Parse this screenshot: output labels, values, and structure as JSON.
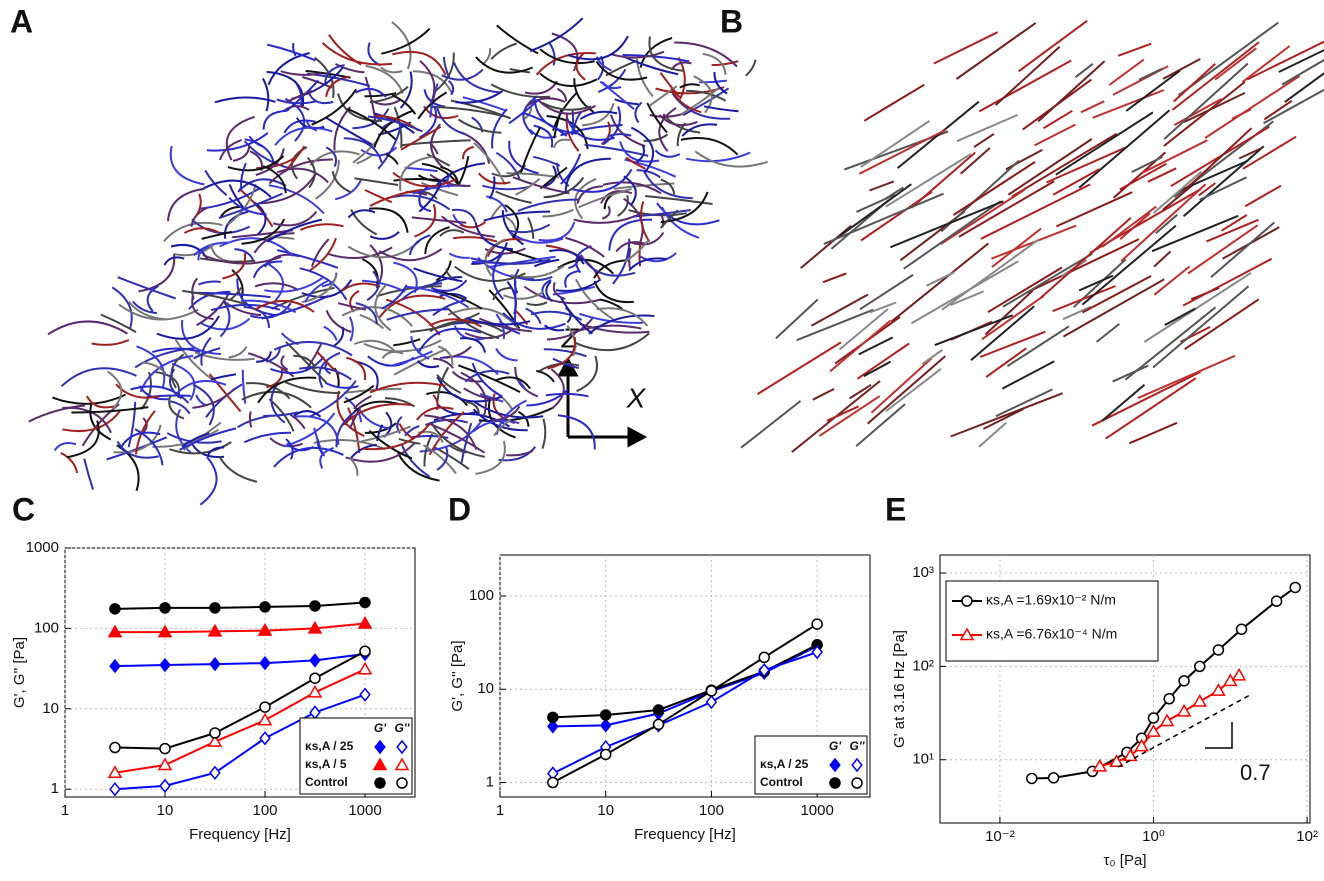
{
  "network_panels": [
    {
      "label": "A"
    },
    {
      "label": "B"
    }
  ],
  "axis_arrows": {
    "vertical": "Z",
    "horizontal": "X"
  },
  "chart_data": [
    {
      "type": "line",
      "label": "C",
      "x_label": "Frequency [Hz]",
      "y_label": "G', G'' [Pa]",
      "log_x": true,
      "log_y": true,
      "grid": true,
      "xlim": [
        1,
        3162
      ],
      "xticks": [
        1,
        10,
        100,
        1000
      ],
      "ylim": [
        0.8,
        1000
      ],
      "yticks": [
        1,
        10,
        100,
        1000
      ],
      "x": [
        3.16,
        10,
        31.6,
        100,
        316,
        1000
      ],
      "legend_columns": [
        "G'",
        "G''"
      ],
      "series": [
        {
          "name": "κs,A / 25",
          "color": "#0000ff",
          "marker": "diamond",
          "storage": [
            34,
            35,
            36,
            37,
            40,
            48
          ],
          "loss": [
            1.0,
            1.1,
            1.6,
            4.3,
            9,
            15
          ]
        },
        {
          "name": "κs,A / 5",
          "color": "#ff0000",
          "marker": "triangle",
          "storage": [
            90,
            90,
            92,
            94,
            100,
            115
          ],
          "loss": [
            1.6,
            2.0,
            3.9,
            7.2,
            16,
            31
          ]
        },
        {
          "name": "Control",
          "color": "#000000",
          "marker": "circle",
          "storage": [
            175,
            180,
            180,
            185,
            190,
            210
          ],
          "loss": [
            3.3,
            3.2,
            5,
            10.5,
            24,
            52
          ]
        }
      ]
    },
    {
      "type": "line",
      "label": "D",
      "x_label": "Frequency [Hz]",
      "y_label": "G', G'' [Pa]",
      "log_x": true,
      "log_y": true,
      "grid": true,
      "xlim": [
        1,
        3162
      ],
      "xticks": [
        1,
        10,
        100,
        1000
      ],
      "ylim": [
        0.7,
        275
      ],
      "yticks": [
        1,
        10,
        100
      ],
      "x": [
        3.16,
        10,
        31.6,
        100,
        316,
        1000
      ],
      "legend_columns": [
        "G'",
        "G''"
      ],
      "series": [
        {
          "name": "κs,A / 25",
          "color": "#0000ff",
          "marker": "diamond",
          "storage": [
            4.0,
            4.1,
            5.5,
            9.5,
            15,
            29
          ],
          "loss": [
            1.25,
            2.4,
            4.1,
            7.3,
            16,
            25
          ]
        },
        {
          "name": "Control",
          "color": "#000000",
          "marker": "circle",
          "storage": [
            5.0,
            5.3,
            6.0,
            9.8,
            15.5,
            30
          ],
          "loss": [
            1.0,
            2.0,
            4.2,
            9.6,
            22,
            50
          ]
        }
      ]
    },
    {
      "type": "scatter-line",
      "label": "E",
      "x_label": "τ₀ [Pa]",
      "y_label": "G' at 3.16 Hz [Pa]",
      "log_x": true,
      "log_y": true,
      "grid": true,
      "xlim": [
        0.00166,
        109
      ],
      "xticks": [
        {
          "value": 0.01,
          "label": "10⁻²"
        },
        {
          "value": 1,
          "label": "10⁰"
        },
        {
          "value": 100,
          "label": "10²"
        }
      ],
      "ylim": [
        2.1,
        1560
      ],
      "yticks": [
        {
          "value": 10,
          "label": "10¹"
        },
        {
          "value": 100,
          "label": "10²"
        },
        {
          "value": 1000,
          "label": "10³"
        }
      ],
      "slope_label": "0.7",
      "series": [
        {
          "name": "κs,A =1.69x10⁻² N/m",
          "color": "#000000",
          "marker": "circle",
          "x": [
            0.026,
            0.05,
            0.16,
            0.45,
            0.7,
            1.0,
            1.6,
            2.5,
            4.0,
            7.0,
            14,
            40,
            70
          ],
          "values": [
            6.3,
            6.4,
            7.5,
            12,
            17,
            28,
            45,
            70,
            100,
            150,
            250,
            500,
            700
          ]
        },
        {
          "name": "κs,A =6.76x10⁻⁴ N/m",
          "color": "#ff0000",
          "marker": "triangle",
          "x": [
            0.2,
            0.33,
            0.5,
            0.7,
            1.0,
            1.5,
            2.5,
            4,
            7,
            10,
            13
          ],
          "values": [
            8.5,
            9.5,
            11,
            14,
            20,
            26,
            33,
            42,
            55,
            70,
            80
          ]
        }
      ]
    }
  ]
}
